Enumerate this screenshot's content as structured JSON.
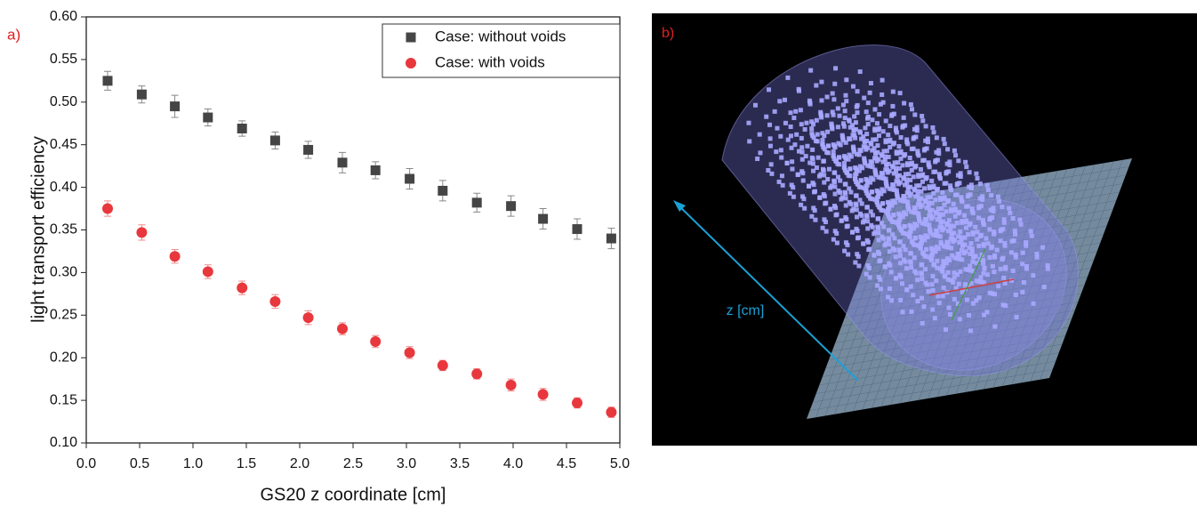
{
  "chart_data": {
    "type": "scatter",
    "panel_label": "a)",
    "xlabel": "GS20 z coordinate [cm]",
    "ylabel": "light transport efficiency",
    "xlim": [
      0,
      5
    ],
    "ylim": [
      0.1,
      0.6
    ],
    "xticks": [
      {
        "value": 0,
        "label": "0.0"
      },
      0.5,
      {
        "value": 1,
        "label": "1.0"
      },
      1.5,
      {
        "value": 2,
        "label": "2.0"
      },
      2.5,
      {
        "value": 3,
        "label": "3.0"
      },
      3.5,
      {
        "value": 4,
        "label": "4.0"
      },
      4.5,
      {
        "value": 5,
        "label": "5.0"
      }
    ],
    "yticks": [
      {
        "value": 0.1,
        "label": "0.10"
      },
      0.15,
      {
        "value": 0.2,
        "label": "0.20"
      },
      0.25,
      {
        "value": 0.3,
        "label": "0.30"
      },
      0.35,
      {
        "value": 0.4,
        "label": "0.40"
      },
      0.45,
      {
        "value": 0.5,
        "label": "0.50"
      },
      0.55,
      {
        "value": 0.6,
        "label": "0.60"
      }
    ],
    "legend": "upper right",
    "series": [
      {
        "name": "Case: without voids",
        "color": "#454545",
        "marker": "square",
        "x": [
          0.2,
          0.52,
          0.83,
          1.14,
          1.46,
          1.77,
          2.08,
          2.4,
          2.71,
          3.03,
          3.34,
          3.66,
          3.98,
          4.28,
          4.6,
          4.92
        ],
        "values": [
          0.525,
          0.509,
          0.495,
          0.482,
          0.469,
          0.455,
          0.444,
          0.429,
          0.42,
          0.41,
          0.396,
          0.382,
          0.378,
          0.363,
          0.351,
          0.34
        ],
        "errors": [
          0.011,
          0.01,
          0.013,
          0.01,
          0.009,
          0.01,
          0.01,
          0.012,
          0.01,
          0.012,
          0.012,
          0.011,
          0.012,
          0.012,
          0.012,
          0.012
        ]
      },
      {
        "name": "Case: with voids",
        "color": "#e8383d",
        "marker": "circle",
        "x": [
          0.2,
          0.52,
          0.83,
          1.14,
          1.46,
          1.77,
          2.08,
          2.4,
          2.71,
          3.03,
          3.34,
          3.66,
          3.98,
          4.28,
          4.6,
          4.92
        ],
        "values": [
          0.375,
          0.347,
          0.319,
          0.301,
          0.282,
          0.266,
          0.247,
          0.234,
          0.219,
          0.206,
          0.191,
          0.181,
          0.168,
          0.157,
          0.147,
          0.136
        ],
        "errors": [
          0.009,
          0.009,
          0.008,
          0.008,
          0.008,
          0.008,
          0.008,
          0.007,
          0.007,
          0.007,
          0.006,
          0.006,
          0.007,
          0.007,
          0.006,
          0.006
        ]
      }
    ]
  },
  "panel_b": {
    "label": "b)",
    "axis_label": "z [cm]"
  }
}
